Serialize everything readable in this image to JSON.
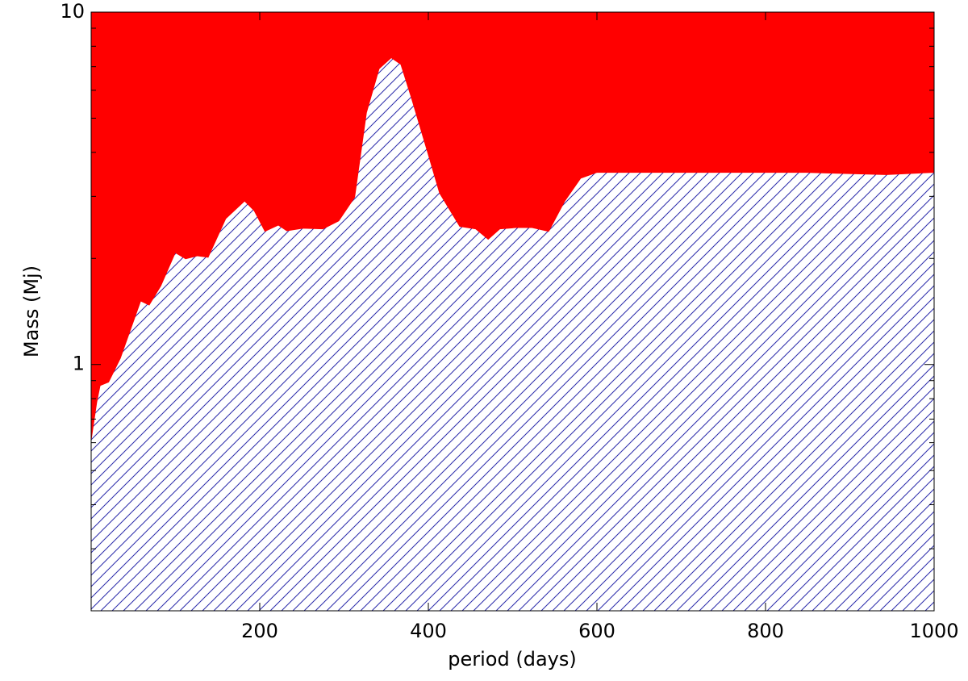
{
  "chart_data": {
    "type": "area",
    "x_label": "period (days)",
    "y_label": "Mass (Mj)",
    "x": [
      0,
      7,
      11,
      21,
      35,
      59,
      69,
      83,
      100,
      112,
      126,
      139,
      160,
      182,
      193,
      206,
      222,
      232,
      251,
      275,
      294,
      313,
      327,
      342,
      356,
      367,
      379,
      399,
      413,
      437,
      456,
      471,
      485,
      504,
      523,
      543,
      562,
      581,
      600,
      657,
      753,
      848,
      943,
      1000
    ],
    "series": [
      {
        "color": "#2a2aaa",
        "above_color": "#ff0000",
        "values": [
          0.6,
          0.78,
          0.87,
          0.89,
          1.04,
          1.51,
          1.47,
          1.67,
          2.07,
          1.99,
          2.03,
          2.01,
          2.59,
          2.9,
          2.73,
          2.38,
          2.48,
          2.39,
          2.43,
          2.42,
          2.55,
          2.98,
          5.18,
          6.9,
          7.4,
          7.1,
          5.76,
          3.98,
          3.06,
          2.46,
          2.42,
          2.26,
          2.42,
          2.44,
          2.44,
          2.38,
          2.9,
          3.37,
          3.5,
          3.5,
          3.5,
          3.5,
          3.45,
          3.5
        ]
      }
    ],
    "xlim": [
      0,
      1000
    ],
    "xticks": [
      200,
      400,
      600,
      800,
      1000
    ],
    "ylim": [
      0.2,
      10
    ],
    "yticks": [
      1,
      10
    ],
    "ylog": true,
    "y_minor_ticks": [
      0.3,
      0.4,
      0.5,
      0.6,
      0.7,
      0.8,
      0.9,
      2,
      3,
      4,
      5,
      6,
      7,
      8,
      9
    ]
  }
}
